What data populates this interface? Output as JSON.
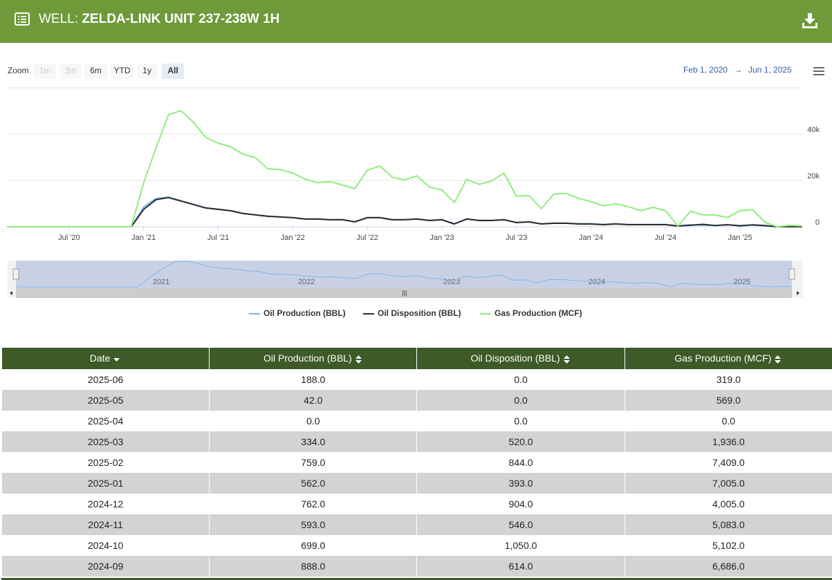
{
  "header": {
    "prefix": "WELL:",
    "title": "ZELDA-LINK UNIT 237-238W 1H"
  },
  "zoom": {
    "label": "Zoom",
    "buttons": [
      "1m",
      "3m",
      "6m",
      "YTD",
      "1y",
      "All"
    ],
    "selected": 5,
    "disabled": [
      0,
      1
    ]
  },
  "date_range": {
    "from": "Feb 1, 2020",
    "separator": "→",
    "to": "Jun 1, 2025"
  },
  "chart_data": {
    "type": "line",
    "x": [
      "2020-02",
      "2020-03",
      "2020-04",
      "2020-05",
      "2020-06",
      "2020-07",
      "2020-08",
      "2020-09",
      "2020-10",
      "2020-11",
      "2020-12",
      "2021-01",
      "2021-02",
      "2021-03",
      "2021-04",
      "2021-05",
      "2021-06",
      "2021-07",
      "2021-08",
      "2021-09",
      "2021-10",
      "2021-11",
      "2021-12",
      "2022-01",
      "2022-02",
      "2022-03",
      "2022-04",
      "2022-05",
      "2022-06",
      "2022-07",
      "2022-08",
      "2022-09",
      "2022-10",
      "2022-11",
      "2022-12",
      "2023-01",
      "2023-02",
      "2023-03",
      "2023-04",
      "2023-05",
      "2023-06",
      "2023-07",
      "2023-08",
      "2023-09",
      "2023-10",
      "2023-11",
      "2023-12",
      "2024-01",
      "2024-02",
      "2024-03",
      "2024-04",
      "2024-05",
      "2024-06",
      "2024-07",
      "2024-08",
      "2024-09",
      "2024-10",
      "2024-11",
      "2024-12",
      "2025-01",
      "2025-02",
      "2025-03",
      "2025-04",
      "2025-05",
      "2025-06"
    ],
    "xlim": [
      "2020-02",
      "2025-06"
    ],
    "xticks": [
      {
        "value": "2020-07",
        "label": "Jul '20"
      },
      {
        "value": "2021-01",
        "label": "Jan '21"
      },
      {
        "value": "2021-07",
        "label": "Jul '21"
      },
      {
        "value": "2022-01",
        "label": "Jan '22"
      },
      {
        "value": "2022-07",
        "label": "Jul '22"
      },
      {
        "value": "2023-01",
        "label": "Jan '23"
      },
      {
        "value": "2023-07",
        "label": "Jul '23"
      },
      {
        "value": "2024-01",
        "label": "Jan '24"
      },
      {
        "value": "2024-07",
        "label": "Jul '24"
      },
      {
        "value": "2025-01",
        "label": "Jan '25"
      }
    ],
    "ylim": [
      0,
      60000
    ],
    "yticks": [
      0,
      {
        "value": 20000,
        "label": "20k"
      },
      {
        "value": 40000,
        "label": "40k"
      }
    ],
    "grid": true,
    "series": [
      {
        "name": "Oil Production (BBL)",
        "color": "#7cb5ec",
        "values": [
          0,
          0,
          0,
          0,
          0,
          0,
          0,
          0,
          0,
          0,
          0,
          8500,
          12200,
          12800,
          11200,
          9700,
          8200,
          7600,
          7000,
          5800,
          5200,
          4600,
          4300,
          4000,
          3400,
          3400,
          3100,
          3100,
          2200,
          4000,
          4000,
          3100,
          3100,
          3400,
          2800,
          3100,
          1300,
          3400,
          2800,
          2800,
          3100,
          1900,
          2200,
          1300,
          1600,
          1600,
          1300,
          1300,
          1000,
          1300,
          1000,
          1000,
          1000,
          1000,
          400,
          888,
          699,
          593,
          762,
          562,
          759,
          334,
          0,
          42,
          188
        ]
      },
      {
        "name": "Oil Disposition (BBL)",
        "color": "#2b2b2b",
        "values": [
          0,
          0,
          0,
          0,
          0,
          0,
          0,
          0,
          0,
          0,
          0,
          7500,
          11700,
          12600,
          11100,
          9600,
          8100,
          7500,
          6900,
          5700,
          5100,
          4500,
          4200,
          3900,
          3300,
          3300,
          3000,
          3000,
          2100,
          3900,
          3900,
          3000,
          3000,
          3300,
          2700,
          3000,
          1200,
          3300,
          2700,
          2700,
          3000,
          1800,
          2100,
          1200,
          1500,
          1500,
          1200,
          1200,
          900,
          1200,
          900,
          900,
          900,
          900,
          300,
          614,
          1050,
          546,
          904,
          393,
          844,
          520,
          0,
          0,
          0
        ]
      },
      {
        "name": "Gas Production (MCF)",
        "color": "#90ed7d",
        "values": [
          0,
          0,
          0,
          0,
          0,
          0,
          0,
          0,
          0,
          0,
          0,
          19000,
          34000,
          48400,
          50200,
          45100,
          38500,
          36100,
          34600,
          31300,
          29800,
          25000,
          24700,
          23200,
          20500,
          19000,
          19500,
          18000,
          16500,
          24400,
          26200,
          21400,
          20200,
          22000,
          17100,
          15900,
          10500,
          20500,
          18300,
          19800,
          23200,
          13200,
          13500,
          7800,
          14100,
          14400,
          12300,
          10800,
          9000,
          9900,
          8700,
          6900,
          8400,
          6900,
          300,
          6686,
          5102,
          5083,
          4005,
          7005,
          7409,
          1936,
          0,
          569,
          319
        ]
      }
    ],
    "navigator": {
      "labels": [
        {
          "value": "2021-01",
          "label": "2021"
        },
        {
          "value": "2022-01",
          "label": "2022"
        },
        {
          "value": "2023-01",
          "label": "2023"
        },
        {
          "value": "2024-01",
          "label": "2024"
        },
        {
          "value": "2025-01",
          "label": "2025"
        }
      ]
    }
  },
  "table": {
    "columns": [
      "Date",
      "Oil Production (BBL)",
      "Oil Disposition (BBL)",
      "Gas Production (MCF)"
    ],
    "rows": [
      [
        "2025-06",
        "188.0",
        "0.0",
        "319.0"
      ],
      [
        "2025-05",
        "42.0",
        "0.0",
        "569.0"
      ],
      [
        "2025-04",
        "0.0",
        "0.0",
        "0.0"
      ],
      [
        "2025-03",
        "334.0",
        "520.0",
        "1,936.0"
      ],
      [
        "2025-02",
        "759.0",
        "844.0",
        "7,409.0"
      ],
      [
        "2025-01",
        "562.0",
        "393.0",
        "7,005.0"
      ],
      [
        "2024-12",
        "762.0",
        "904.0",
        "4,005.0"
      ],
      [
        "2024-11",
        "593.0",
        "546.0",
        "5,083.0"
      ],
      [
        "2024-10",
        "699.0",
        "1,050.0",
        "5,102.0"
      ],
      [
        "2024-09",
        "888.0",
        "614.0",
        "6,686.0"
      ]
    ]
  }
}
